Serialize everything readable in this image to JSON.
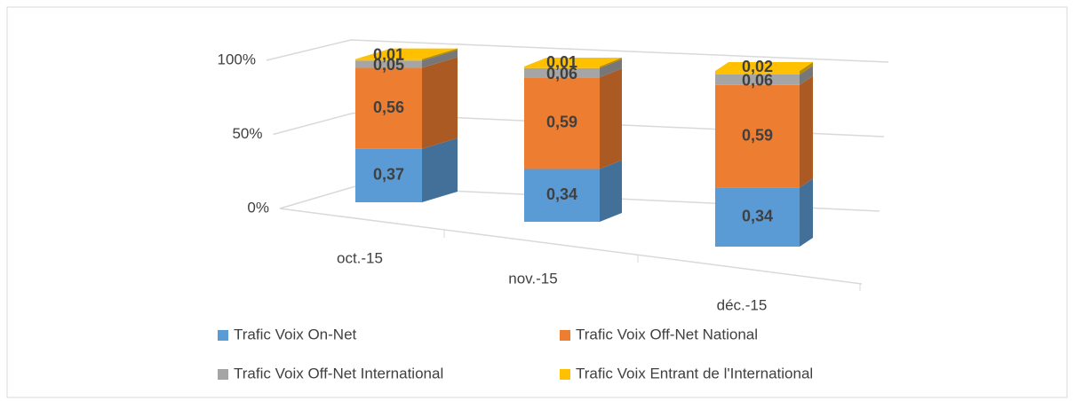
{
  "chart_data": {
    "type": "bar3d_stacked",
    "categories": [
      "oct.-15",
      "nov.-15",
      "déc.-15"
    ],
    "series": [
      {
        "name": "Trafic Voix On-Net",
        "color": "#5b9bd5",
        "values": [
          0.37,
          0.34,
          0.34
        ],
        "value_labels": [
          "0,37",
          "0,34",
          "0,34"
        ]
      },
      {
        "name": "Trafic Voix Off-Net National",
        "color": "#ed7d31",
        "values": [
          0.56,
          0.59,
          0.59
        ],
        "value_labels": [
          "0,56",
          "0,59",
          "0,59"
        ]
      },
      {
        "name": "Trafic Voix Off-Net International",
        "color": "#a5a5a5",
        "values": [
          0.05,
          0.06,
          0.06
        ],
        "value_labels": [
          "0,05",
          "0,06",
          "0,06"
        ]
      },
      {
        "name": "Trafic Voix Entrant de l'International",
        "color": "#ffc000",
        "values": [
          0.01,
          0.01,
          0.02
        ],
        "value_labels": [
          "0,01",
          "0,01",
          "0,02"
        ]
      }
    ],
    "ylim": [
      0,
      1
    ],
    "yticks": [
      {
        "value": 0,
        "label": "0%"
      },
      {
        "value": 0.5,
        "label": "50%"
      },
      {
        "value": 1,
        "label": "100%"
      }
    ],
    "grid": true,
    "legend": "bottom"
  }
}
